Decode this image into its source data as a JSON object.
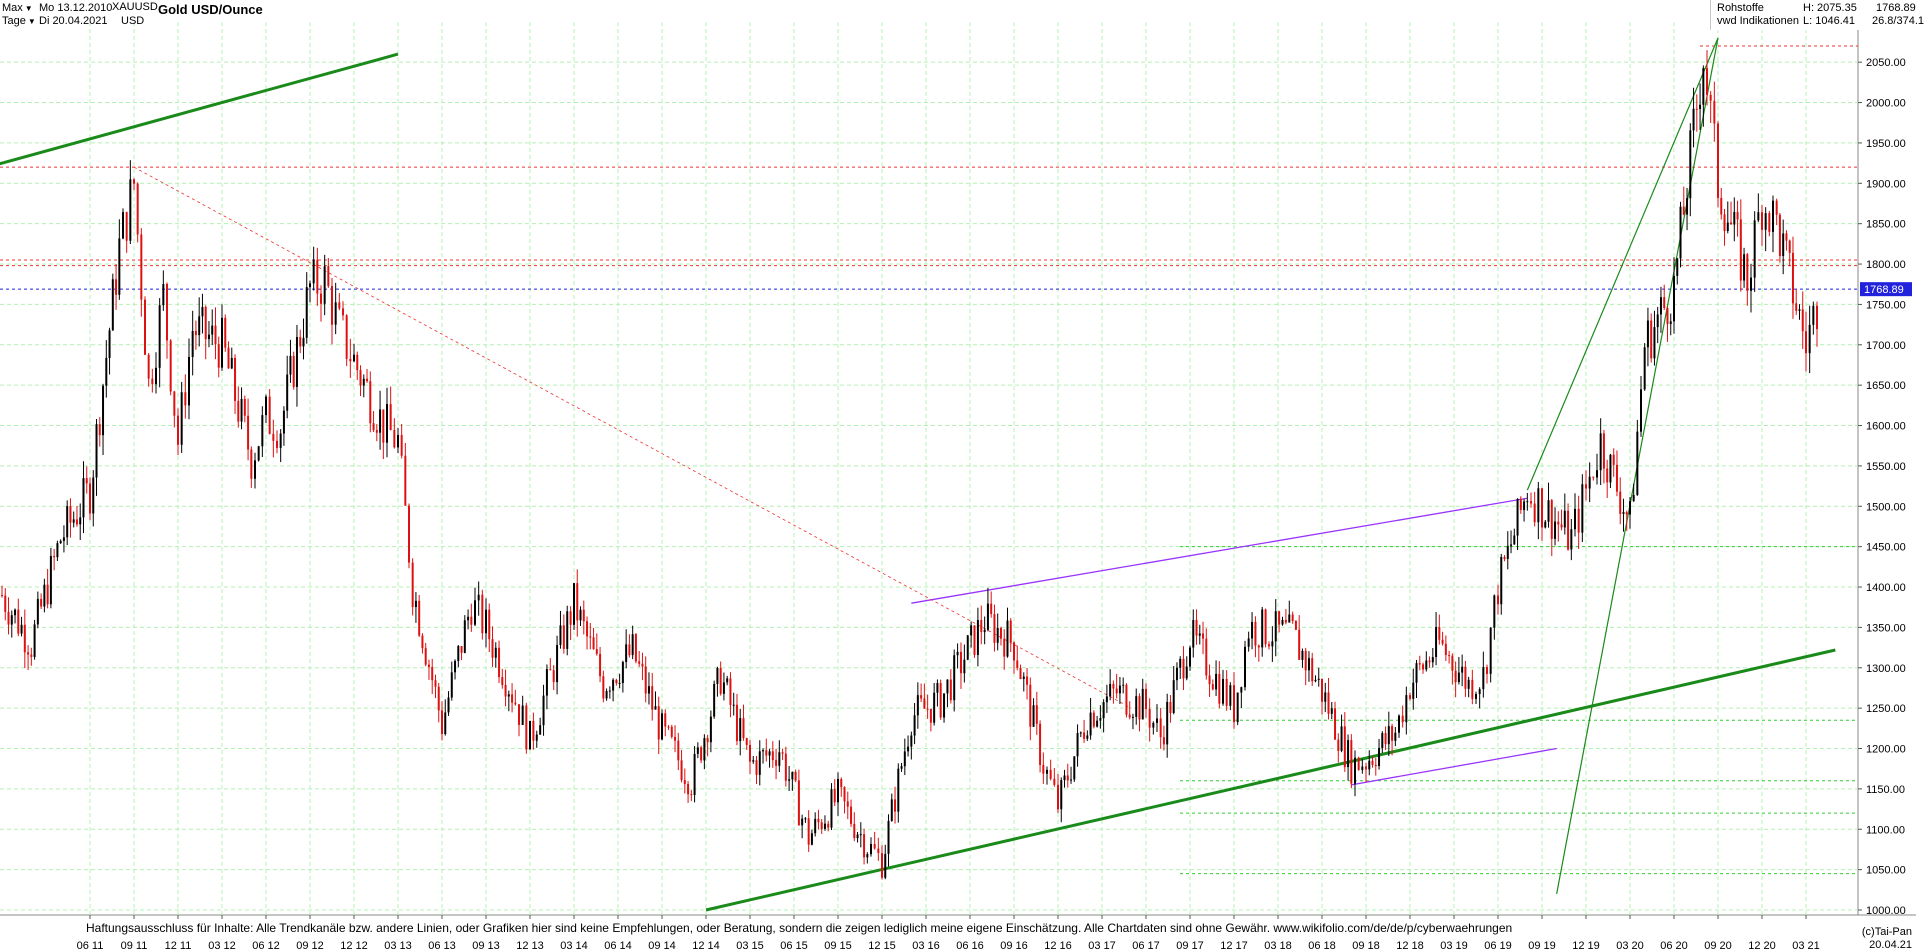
{
  "header": {
    "range_select": "Max",
    "interval_select": "Tage",
    "start_date": "Mo 13.12.2010",
    "end_date": "Di 20.04.2021",
    "symbol": "XAUUSD",
    "currency": "USD",
    "title": "Gold USD/Ounce"
  },
  "info": {
    "category": "Rohstoffe",
    "source": "vwd Indikationen",
    "high": "H: 2075.35",
    "low": "L: 1046.41",
    "last": "1768.89",
    "ratio": "26.8/374.1"
  },
  "disclaimer": "Haftungsausschluss für Inhalte: Alle Trendkanäle bzw. andere Linien, oder Grafiken hier sind keine Empfehlungen, oder Beratung, sondern die zeigen lediglich meine eigene Einschätzung. Alle Chartdaten sind ohne Gewähr.  www.wikifolio.com/de/de/p/cyberwaehrungen",
  "copyright": "(c)Tai-Pan",
  "last_date_label": "20.04.21",
  "colors": {
    "grid": "#b4f0b4",
    "candle": "#000000",
    "trend_dark": "#1a8a1a",
    "trend_light": "#33cc33",
    "purple": "#9933ff",
    "red_dashed": "#ee3333",
    "blue_dashed": "#2222dd",
    "cyan": "#22ccff",
    "magenta": "#ee55ee"
  },
  "chart_data": {
    "type": "candlestick",
    "title": "Gold USD/Ounce",
    "ylim": [
      1000,
      2090
    ],
    "y_ticks": [
      1000,
      1050,
      1100,
      1150,
      1200,
      1250,
      1300,
      1350,
      1400,
      1450,
      1500,
      1550,
      1600,
      1650,
      1700,
      1750,
      1800,
      1850,
      1900,
      1950,
      2000,
      2050
    ],
    "x_ticks": [
      "06 11",
      "09 11",
      "12 11",
      "03 12",
      "06 12",
      "09 12",
      "12 12",
      "03 13",
      "06 13",
      "09 13",
      "12 13",
      "03 14",
      "06 14",
      "09 14",
      "12 14",
      "03 15",
      "06 15",
      "09 15",
      "12 15",
      "03 16",
      "06 16",
      "09 16",
      "12 16",
      "03 17",
      "06 17",
      "09 17",
      "12 17",
      "03 18",
      "06 18",
      "09 18",
      "12 18",
      "03 19",
      "06 19",
      "09 19",
      "12 19",
      "03 20",
      "06 20",
      "09 20",
      "12 20",
      "03 21"
    ],
    "last_price": 1768.89,
    "grid": true,
    "price_path": [
      [
        "12 10",
        1390
      ],
      [
        "02 11",
        1330
      ],
      [
        "04 11",
        1460
      ],
      [
        "06 11",
        1520
      ],
      [
        "08 11",
        1820
      ],
      [
        "09 11",
        1900
      ],
      [
        "10 11",
        1650
      ],
      [
        "11 11",
        1760
      ],
      [
        "12 11",
        1580
      ],
      [
        "01 12",
        1720
      ],
      [
        "03 12",
        1700
      ],
      [
        "05 12",
        1560
      ],
      [
        "06 12",
        1610
      ],
      [
        "07 12",
        1600
      ],
      [
        "09 12",
        1770
      ],
      [
        "10 12",
        1780
      ],
      [
        "11 12",
        1720
      ],
      [
        "12 12",
        1680
      ],
      [
        "02 13",
        1600
      ],
      [
        "03 13",
        1580
      ],
      [
        "04 13",
        1400
      ],
      [
        "06 13",
        1230
      ],
      [
        "08 13",
        1380
      ],
      [
        "09 13",
        1350
      ],
      [
        "11 13",
        1260
      ],
      [
        "12 13",
        1210
      ],
      [
        "03 14",
        1380
      ],
      [
        "05 14",
        1280
      ],
      [
        "07 14",
        1320
      ],
      [
        "09 14",
        1220
      ],
      [
        "11 14",
        1160
      ],
      [
        "01 15",
        1290
      ],
      [
        "03 15",
        1180
      ],
      [
        "05 15",
        1200
      ],
      [
        "07 15",
        1090
      ],
      [
        "09 15",
        1140
      ],
      [
        "11 15",
        1080
      ],
      [
        "12 15",
        1060
      ],
      [
        "02 16",
        1240
      ],
      [
        "04 16",
        1260
      ],
      [
        "07 16",
        1360
      ],
      [
        "09 16",
        1330
      ],
      [
        "11 16",
        1180
      ],
      [
        "12 16",
        1130
      ],
      [
        "02 17",
        1240
      ],
      [
        "04 17",
        1270
      ],
      [
        "06 17",
        1250
      ],
      [
        "07 17",
        1215
      ],
      [
        "09 17",
        1340
      ],
      [
        "11 17",
        1280
      ],
      [
        "12 17",
        1250
      ],
      [
        "01 18",
        1350
      ],
      [
        "04 18",
        1340
      ],
      [
        "06 18",
        1270
      ],
      [
        "08 18",
        1180
      ],
      [
        "09 18",
        1185
      ],
      [
        "11 18",
        1220
      ],
      [
        "12 18",
        1280
      ],
      [
        "02 19",
        1330
      ],
      [
        "04 19",
        1280
      ],
      [
        "05 19",
        1290
      ],
      [
        "06 19",
        1400
      ],
      [
        "08 19",
        1520
      ],
      [
        "09 19",
        1500
      ],
      [
        "11 19",
        1460
      ],
      [
        "12 19",
        1520
      ],
      [
        "01 20",
        1580
      ],
      [
        "03 20",
        1480
      ],
      [
        "04 20",
        1700
      ],
      [
        "06 20",
        1770
      ],
      [
        "08 20",
        2060
      ],
      [
        "09 20",
        1900
      ],
      [
        "11 20",
        1780
      ],
      [
        "12 20",
        1880
      ],
      [
        "01 21",
        1850
      ],
      [
        "03 21",
        1700
      ],
      [
        "04 21",
        1769
      ]
    ],
    "horizontal_levels": [
      {
        "value": 1920,
        "style": "red-dashed"
      },
      {
        "value": 1805,
        "style": "red-dashed"
      },
      {
        "value": 1798,
        "style": "red-dashed"
      },
      {
        "value": 1768.89,
        "style": "blue-dashed"
      },
      {
        "value": 2070,
        "style": "red-dashed"
      },
      {
        "value": 1450,
        "style": "green-dashed"
      },
      {
        "value": 1235,
        "style": "green-dashed"
      },
      {
        "value": 1160,
        "style": "green-dashed"
      },
      {
        "value": 1120,
        "style": "green-dashed"
      },
      {
        "value": 1045,
        "style": "green-dashed"
      }
    ],
    "trendlines": [
      {
        "style": "dark-green-thick",
        "from": [
          "03 10",
          1880
        ],
        "to": [
          "03 13",
          2060
        ]
      },
      {
        "style": "dark-green-thick",
        "from": [
          "12 14",
          1000
        ],
        "to": [
          "05 21",
          1322
        ]
      },
      {
        "style": "purple",
        "from": [
          "02 16",
          1380
        ],
        "to": [
          "08 19",
          1510
        ]
      },
      {
        "style": "purple",
        "from": [
          "08 18",
          1155
        ],
        "to": [
          "10 19",
          1200
        ]
      },
      {
        "style": "red-dashed-thin",
        "from": [
          "09 11",
          1920
        ],
        "to": [
          "05 17",
          1250
        ]
      },
      {
        "style": "green",
        "from": [
          "10 19",
          1020
        ],
        "to": [
          "09 20",
          2080
        ]
      },
      {
        "style": "green",
        "from": [
          "08 19",
          1520
        ],
        "to": [
          "09 20",
          2080
        ]
      }
    ]
  }
}
